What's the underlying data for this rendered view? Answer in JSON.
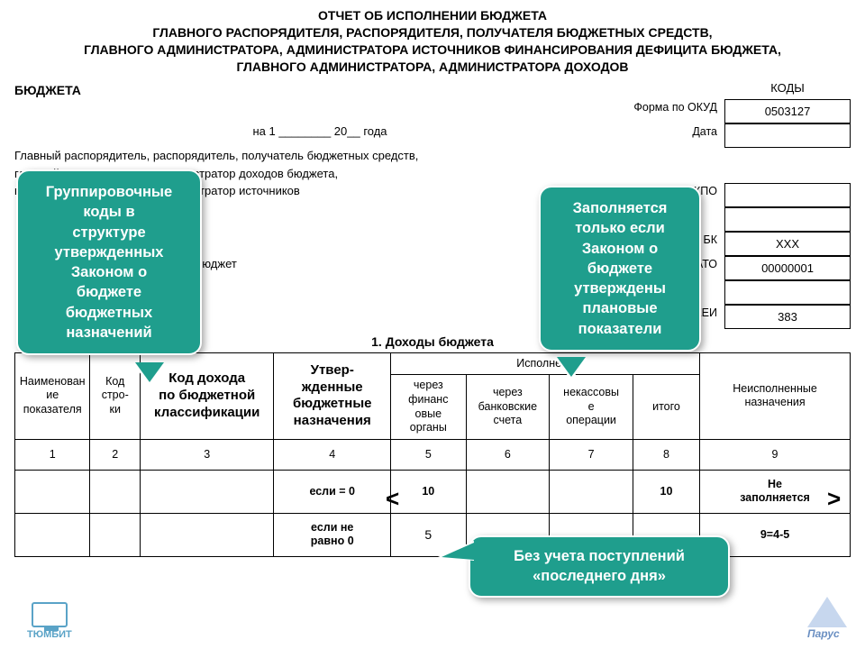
{
  "title_lines": [
    "ОТЧЕТ ОБ ИСПОЛНЕНИИ БЮДЖЕТА",
    "ГЛАВНОГО РАСПОРЯДИТЕЛЯ, РАСПОРЯДИТЕЛЯ, ПОЛУЧАТЕЛЯ БЮДЖЕТНЫХ СРЕДСТВ,",
    "ГЛАВНОГО АДМИНИСТРАТОРА, АДМИНИСТРАТОРА ИСТОЧНИКОВ ФИНАНСИРОВАНИЯ ДЕФИЦИТА БЮДЖЕТА,",
    "ГЛАВНОГО АДМИНИСТРАТОРА, АДМИНИСТРАТОРА ДОХОДОВ"
  ],
  "budget_word": "БЮДЖЕТА",
  "codes_header": "КОДЫ",
  "form_label": "Форма по ОКУД",
  "date_line": "на 1 ________ 20__ года",
  "date_label": "Дата",
  "desc_lines": [
    "Главный распорядитель, распорядитель, получатель бюджетных средств,",
    "главный администратор, администратор доходов бюджета,",
    "главный администратор, администратор источников"
  ],
  "labels": {
    "okpo": "по ОКПО",
    "glava": "Глава по БК",
    "okato": "по ОКАТО",
    "okei": "по ОКЕИ"
  },
  "mid_text": "й бюджет",
  "codes": {
    "okud": "0503127",
    "date": "",
    "okpo": "",
    "empty1": "",
    "glava": "ХХХ",
    "okato": "00000001",
    "empty2": "",
    "okei": "383"
  },
  "section1": "1. Доходы бюджета",
  "table": {
    "col_widths": [
      "9%",
      "6%",
      "16%",
      "14%",
      "9%",
      "10%",
      "10%",
      "8%",
      "18%"
    ],
    "headers": {
      "c1": "Наименован\nие\nпоказателя",
      "c2": "Код\nстро-\nки",
      "c3": "Код дохода\nпо бюджетной\nклассификации",
      "c4": "Утвер-\nжденные\nбюджетные\nназначения",
      "exec_group": "Исполнено",
      "c5": "через\nфинанс\nовые\nорганы",
      "c6": "через\nбанковские\nсчета",
      "c7": "некассовы\nе\nоперации",
      "c8": "итого",
      "c9": "Неисполненные\nназначения"
    },
    "num_row": [
      "1",
      "2",
      "3",
      "4",
      "5",
      "6",
      "7",
      "8",
      "9"
    ],
    "row_a": {
      "c4": "если = 0",
      "c5": "10",
      "c8": "10",
      "c9": "Не\nзаполняется"
    },
    "row_b": {
      "c4": "если не\nравно 0",
      "c5": "5",
      "c9": "9=4-5"
    }
  },
  "callouts": {
    "left": "Группировочные\nкоды в\nструктуре\nутвержденных\nЗаконом о\nбюджете\nбюджетных\nназначений",
    "right": "Заполняется\nтолько если\nЗаконом о\nбюджете\nутверждены\nплановые\nпоказатели",
    "bottom": "Без учета поступлений\n«последнего дня»"
  },
  "arrows": {
    "left": "<",
    "right": ">"
  },
  "logos": {
    "left": "ТЮМБИТ",
    "right": "Парус"
  },
  "colors": {
    "callout_bg": "#1f9e8d",
    "callout_border": "#ffffff",
    "table_border": "#000000"
  }
}
